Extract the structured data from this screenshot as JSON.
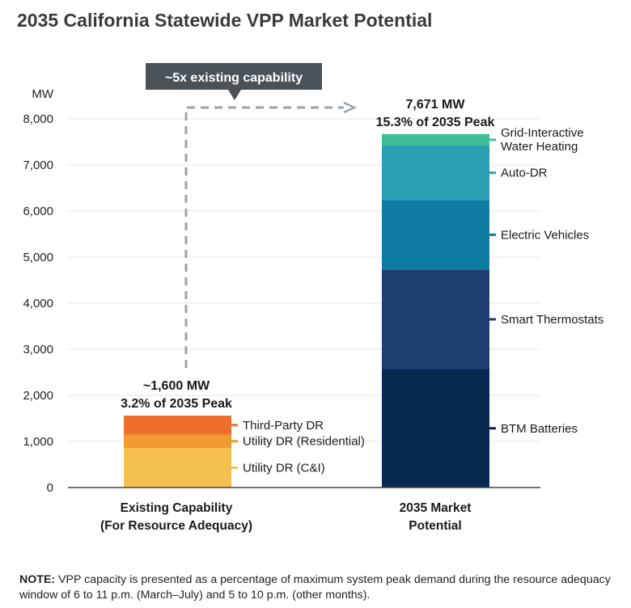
{
  "chart_data": {
    "type": "bar",
    "stacked": true,
    "title": "2035 California Statewide VPP Market Potential",
    "ylabel": "MW",
    "ylim": [
      0,
      8000
    ],
    "yticks": [
      0,
      1000,
      2000,
      3000,
      4000,
      5000,
      6000,
      7000,
      8000
    ],
    "ytick_labels": [
      "0",
      "1,000",
      "2,000",
      "3,000",
      "4,000",
      "5,000",
      "6,000",
      "7,000",
      "8,000"
    ],
    "grid": true,
    "bars": [
      {
        "category_lines": [
          "Existing Capability",
          "(For Resource Adequacy)"
        ],
        "total_label_lines": [
          "~1,600 MW",
          "3.2% of 2035 Peak"
        ],
        "segments": [
          {
            "name": "Utility DR (C&I)",
            "value": 860,
            "color": "#f5bf4f"
          },
          {
            "name": "Utility DR (Residential)",
            "value": 290,
            "color": "#f39a2f"
          },
          {
            "name": "Third-Party DR",
            "value": 410,
            "color": "#ee6f2b"
          }
        ]
      },
      {
        "category_lines": [
          "2035 Market",
          "Potential"
        ],
        "total_label_lines": [
          "7,671 MW",
          "15.3% of 2035 Peak"
        ],
        "segments": [
          {
            "name": "BTM Batteries",
            "value": 2570,
            "color": "#062a4f"
          },
          {
            "name": "Smart Thermostats",
            "value": 2160,
            "color": "#1f3f73"
          },
          {
            "name": "Electric Vehicles",
            "value": 1510,
            "color": "#0d7ca0"
          },
          {
            "name": "Auto-DR",
            "value": 1180,
            "color": "#2a9db3"
          },
          {
            "name": "Grid-Interactive Water Heating",
            "value": 251,
            "color": "#3fbd96"
          }
        ]
      }
    ],
    "annotation": "~5x existing capability"
  },
  "note": {
    "label": "NOTE:",
    "text": "VPP capacity is presented as a percentage of maximum system peak demand during the resource adequacy window of 6 to 11 p.m. (March–July) and 5 to 10 p.m. (other months)."
  }
}
